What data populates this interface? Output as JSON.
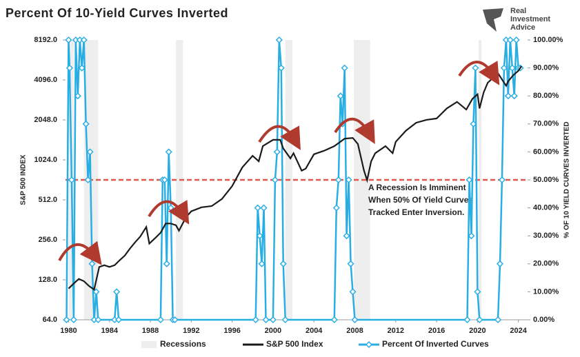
{
  "chart_data": {
    "type": "line",
    "title": "Percent Of 10-Yield Curves Inverted",
    "logo": [
      "Real",
      "Investment",
      "Advice"
    ],
    "ylabel": "S&P 500 INDEX",
    "y2label": "% OF 10 YIELD CURVES INVERTED",
    "log_y": true,
    "xlim": [
      1979.7,
      2024.9
    ],
    "xticks": [
      1980,
      1984,
      1988,
      1992,
      1996,
      2000,
      2004,
      2008,
      2012,
      2016,
      2020,
      2024
    ],
    "ylim": [
      64,
      8192
    ],
    "yticks": [
      {
        "value": 64,
        "label": "64.0"
      },
      {
        "value": 128,
        "label": "128.0"
      },
      {
        "value": 256,
        "label": "256.0"
      },
      {
        "value": 512,
        "label": "512.0"
      },
      {
        "value": 1024,
        "label": "1024.0"
      },
      {
        "value": 2048,
        "label": "2048.0"
      },
      {
        "value": 4096,
        "label": "4096.0"
      },
      {
        "value": 8192,
        "label": "8192.0"
      }
    ],
    "y2lim": [
      0,
      100
    ],
    "y2ticks": [
      {
        "value": 0,
        "label": "0.00%"
      },
      {
        "value": 10,
        "label": "10.00%"
      },
      {
        "value": 20,
        "label": "20.00%"
      },
      {
        "value": 30,
        "label": "30.00%"
      },
      {
        "value": 40,
        "label": "40.00%"
      },
      {
        "value": 50,
        "label": "50.00%"
      },
      {
        "value": 60,
        "label": "60.00%"
      },
      {
        "value": 70,
        "label": "70.00%"
      },
      {
        "value": 80,
        "label": "80.00%"
      },
      {
        "value": 90,
        "label": "90.00%"
      },
      {
        "value": 100,
        "label": "100.00%"
      }
    ],
    "recessions": {
      "name": "Recessions",
      "color": "#eeeeee",
      "spans": [
        [
          1980.0,
          1980.5
        ],
        [
          1981.5,
          1982.9
        ],
        [
          1990.5,
          1991.2
        ],
        [
          2001.2,
          2001.9
        ],
        [
          2007.9,
          2009.5
        ],
        [
          2020.1,
          2020.4
        ]
      ]
    },
    "reference_line": {
      "value": 50,
      "axis": "y2",
      "color": "#e0584b"
    },
    "annotation": [
      "A Recession Is Imminent",
      "When 50% Of Yield Curves",
      "Tracked Enter Inversion."
    ],
    "series": [
      {
        "name": "S&P 500 Index",
        "color": "#1a1a1a",
        "axis": "y",
        "x": [
          1980,
          1980.5,
          1981,
          1981.5,
          1982,
          1982.5,
          1983,
          1983.5,
          1984,
          1984.5,
          1985,
          1985.5,
          1986,
          1986.5,
          1987,
          1987.6,
          1987.9,
          1988.5,
          1989,
          1989.5,
          1990,
          1990.5,
          1990.8,
          1991.5,
          1992,
          1993,
          1994,
          1995,
          1996,
          1997,
          1998,
          1998.6,
          1999,
          2000,
          2000.7,
          2001,
          2001.7,
          2002,
          2002.8,
          2003.2,
          2004,
          2005,
          2006,
          2007,
          2007.8,
          2008.3,
          2008.9,
          2009.2,
          2009.6,
          2010,
          2011,
          2011.7,
          2012,
          2013,
          2014,
          2015,
          2016,
          2017,
          2018,
          2018.9,
          2019.5,
          2020,
          2020.2,
          2020.6,
          2021,
          2022,
          2022.8,
          2023,
          2023.5,
          2024,
          2024.3
        ],
        "values": [
          110,
          120,
          130,
          125,
          115,
          108,
          160,
          165,
          160,
          165,
          180,
          195,
          220,
          245,
          270,
          320,
          240,
          265,
          290,
          340,
          340,
          330,
          300,
          380,
          420,
          450,
          460,
          520,
          650,
          900,
          1100,
          1000,
          1300,
          1450,
          1450,
          1250,
          1050,
          1150,
          850,
          880,
          1130,
          1200,
          1300,
          1480,
          1500,
          1350,
          850,
          720,
          1000,
          1150,
          1300,
          1150,
          1400,
          1700,
          1950,
          2050,
          2100,
          2500,
          2800,
          2450,
          2950,
          3200,
          2500,
          3300,
          3900,
          4600,
          3700,
          4000,
          4450,
          4800,
          5200
        ]
      },
      {
        "name": "Percent Of Inverted Curves",
        "color": "#29aee3",
        "axis": "y2",
        "x": [
          1979.8,
          1980.0,
          1980.1,
          1980.3,
          1980.5,
          1980.7,
          1980.9,
          1981.1,
          1981.3,
          1981.5,
          1981.7,
          1981.9,
          1982.1,
          1982.3,
          1982.5,
          1982.7,
          1982.9,
          1984.5,
          1984.7,
          1984.9,
          1989.0,
          1989.2,
          1989.4,
          1989.6,
          1989.8,
          1990.0,
          1990.2,
          1990.4,
          1998.3,
          1998.5,
          1998.7,
          1998.9,
          1999.1,
          1999.3,
          2000.0,
          2000.2,
          2000.4,
          2000.6,
          2000.8,
          2001.0,
          2001.2,
          2006.0,
          2006.2,
          2006.4,
          2006.6,
          2006.8,
          2007.0,
          2007.2,
          2007.4,
          2007.6,
          2007.8,
          2008.0,
          2019.0,
          2019.2,
          2019.4,
          2019.6,
          2019.8,
          2020.0,
          2020.2,
          2022.0,
          2022.2,
          2022.4,
          2022.6,
          2022.8,
          2023.0,
          2023.2,
          2023.4,
          2023.6,
          2023.8,
          2024.0,
          2024.2
        ],
        "values": [
          0,
          100,
          90,
          50,
          0,
          100,
          80,
          100,
          90,
          100,
          70,
          50,
          60,
          20,
          0,
          10,
          0,
          0,
          10,
          0,
          0,
          50,
          50,
          20,
          60,
          40,
          0,
          0,
          0,
          40,
          30,
          20,
          40,
          0,
          0,
          50,
          60,
          100,
          90,
          20,
          0,
          0,
          40,
          50,
          80,
          70,
          90,
          30,
          50,
          20,
          10,
          0,
          0,
          50,
          30,
          70,
          90,
          10,
          0,
          0,
          20,
          50,
          90,
          100,
          80,
          100,
          90,
          80,
          100,
          90,
          90
        ]
      }
    ]
  }
}
